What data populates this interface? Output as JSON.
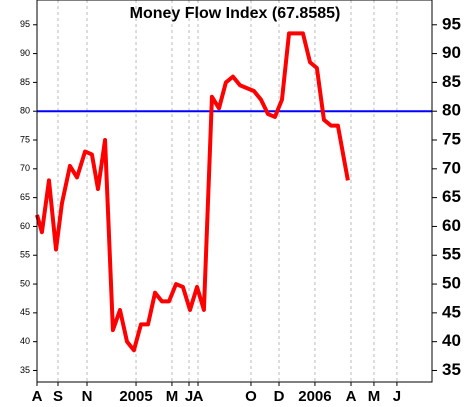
{
  "chart_data": {
    "type": "line",
    "title": "Money Flow Index (67.8585)",
    "x": [
      0,
      0.3,
      0.73,
      1.16,
      1.52,
      2.01,
      2.44,
      2.93,
      3.35,
      3.72,
      4.15,
      4.63,
      5.06,
      5.49,
      5.91,
      6.34,
      6.77,
      7.2,
      7.62,
      8.05,
      8.48,
      8.9,
      9.33,
      9.76,
      10.18,
      10.67,
      11.1,
      11.52,
      11.95,
      12.38,
      12.8,
      13.23,
      13.66,
      14.09,
      14.51,
      14.94,
      15.37,
      15.79,
      16.22,
      16.65,
      17.07,
      17.5,
      17.93,
      18.35,
      18.96
    ],
    "series": [
      {
        "name": "Money Flow Index",
        "color": "#ff0000",
        "values": [
          62,
          59,
          68,
          56,
          64,
          70.5,
          68.5,
          73,
          72.5,
          66.5,
          75,
          42,
          45.5,
          40,
          38.5,
          43,
          43,
          48.5,
          47,
          47,
          50,
          49.5,
          45.5,
          49.5,
          45.5,
          82.5,
          80.5,
          85,
          86,
          84.5,
          84,
          83.5,
          82,
          79.5,
          79,
          82,
          93.5,
          93.5,
          93.5,
          88.5,
          87.5,
          78.5,
          77.5,
          77.5,
          68
        ]
      }
    ],
    "hline": {
      "value": 80,
      "color": "#0000ff"
    },
    "xlim": [
      0,
      24.09
    ],
    "xticks": [
      {
        "value": 0,
        "label": "A"
      },
      {
        "value": 1.28,
        "label": "S"
      },
      {
        "value": 3.05,
        "label": "N"
      },
      {
        "value": 6.04,
        "label": "2005"
      },
      {
        "value": 8.23,
        "label": "M"
      },
      {
        "value": 9.27,
        "label": "J"
      },
      {
        "value": 9.82,
        "label": "A"
      },
      {
        "value": 13.05,
        "label": "O"
      },
      {
        "value": 14.76,
        "label": "D"
      },
      {
        "value": 16.95,
        "label": "2006"
      },
      {
        "value": 19.15,
        "label": "A"
      },
      {
        "value": 20.55,
        "label": "M"
      },
      {
        "value": 21.95,
        "label": "J"
      }
    ],
    "ylim": [
      33,
      99.3
    ],
    "yticks": [
      35,
      40,
      45,
      50,
      55,
      60,
      65,
      70,
      75,
      80,
      85,
      90,
      95
    ],
    "grid": true
  }
}
